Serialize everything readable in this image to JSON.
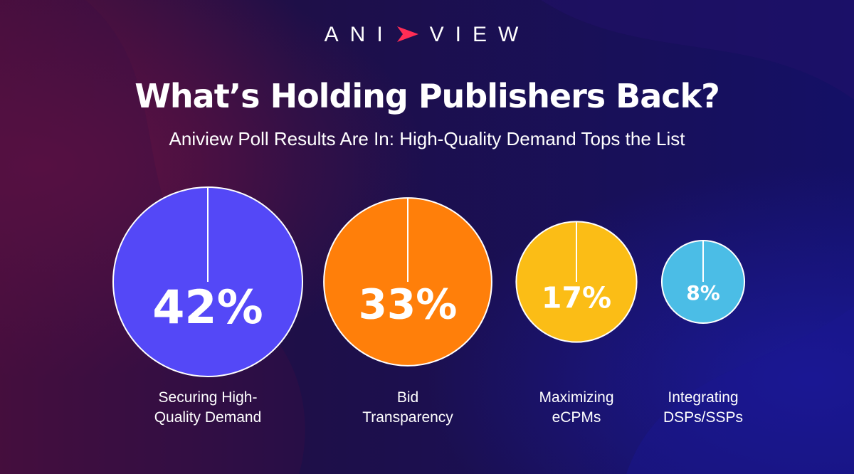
{
  "brand": {
    "logo_left": "ANI",
    "logo_right": "VIEW"
  },
  "header": {
    "title": "What’s Holding Publishers Back?",
    "subtitle": "Aniview Poll Results Are In: High-Quality Demand Tops the List"
  },
  "colors": {
    "background_dark": "#150c40",
    "background_magenta": "#5a0f3c",
    "background_blue": "#12137a",
    "logo_accent": "#ff2d55"
  },
  "chart_data": {
    "type": "bubble",
    "title": "What’s Holding Publishers Back?",
    "unit": "%",
    "categories": [
      [
        "Securing High-",
        "Quality Demand"
      ],
      [
        "Bid",
        "Transparency"
      ],
      [
        "Maximizing",
        "eCPMs"
      ],
      [
        "Integrating",
        "DSPs/SSPs"
      ]
    ],
    "values": [
      42,
      33,
      17,
      8
    ],
    "value_labels": [
      "42%",
      "33%",
      "17%",
      "8%"
    ],
    "colors": [
      "#5448f7",
      "#ff7f0a",
      "#fbbd16",
      "#4bbde6"
    ]
  }
}
